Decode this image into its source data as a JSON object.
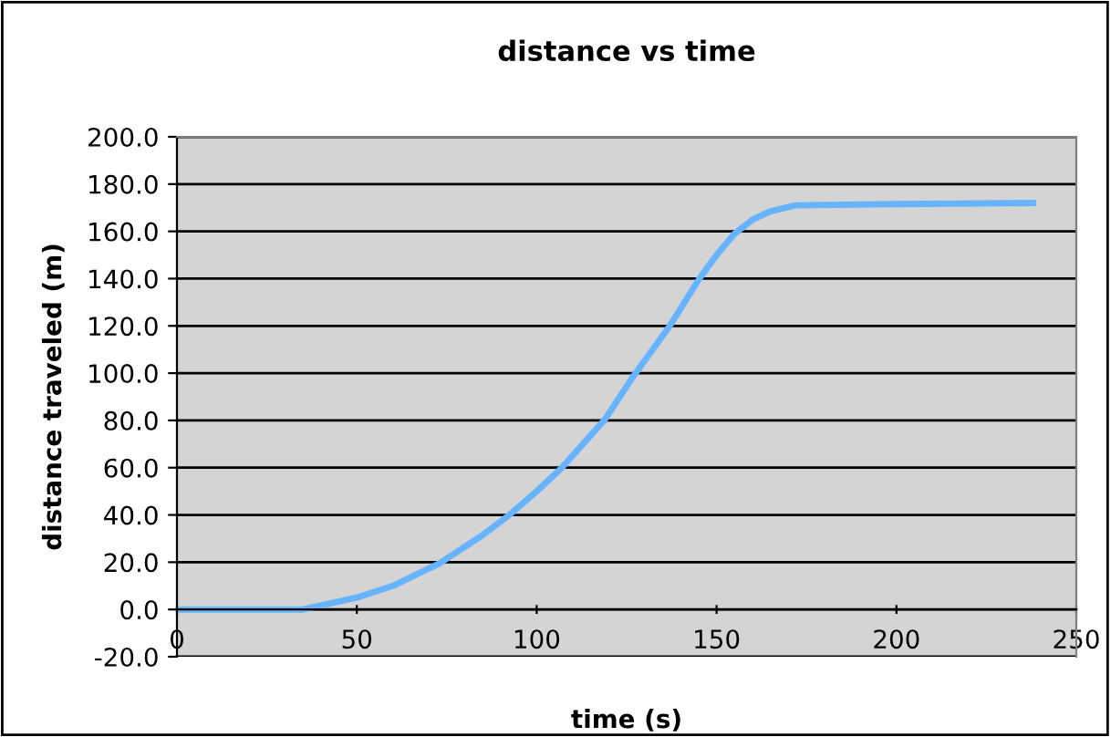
{
  "chart_data": {
    "type": "line",
    "title": "distance vs time",
    "xlabel": "time (s)",
    "ylabel": "distance traveled (m)",
    "xlim": [
      0,
      250
    ],
    "xticks": [
      0,
      50,
      100,
      150,
      200,
      250
    ],
    "ylim": [
      -20,
      200
    ],
    "yticks": [
      {
        "value": -20,
        "label": "-20.0"
      },
      {
        "value": 0,
        "label": "0.0"
      },
      {
        "value": 20,
        "label": "20.0"
      },
      {
        "value": 40,
        "label": "40.0"
      },
      {
        "value": 60,
        "label": "60.0"
      },
      {
        "value": 80,
        "label": "80.0"
      },
      {
        "value": 100,
        "label": "100.0"
      },
      {
        "value": 120,
        "label": "120.0"
      },
      {
        "value": 140,
        "label": "140.0"
      },
      {
        "value": 160,
        "label": "160.0"
      },
      {
        "value": 180,
        "label": "180.0"
      },
      {
        "value": 200,
        "label": "200.0"
      }
    ],
    "grid": "y",
    "legend": false,
    "marker": "none",
    "line_style": "solid",
    "series": [
      {
        "color": "#66b3ff",
        "x": [
          1,
          35,
          50,
          60,
          73,
          85,
          92,
          100,
          107,
          119,
          127,
          137,
          145,
          150,
          155,
          160,
          165,
          172,
          200,
          238
        ],
        "values": [
          0,
          0,
          5,
          10,
          19.5,
          31.5,
          39.5,
          50,
          60,
          80.5,
          99,
          120,
          139.5,
          150,
          159,
          165,
          168.5,
          171,
          171.5,
          172
        ]
      }
    ]
  }
}
